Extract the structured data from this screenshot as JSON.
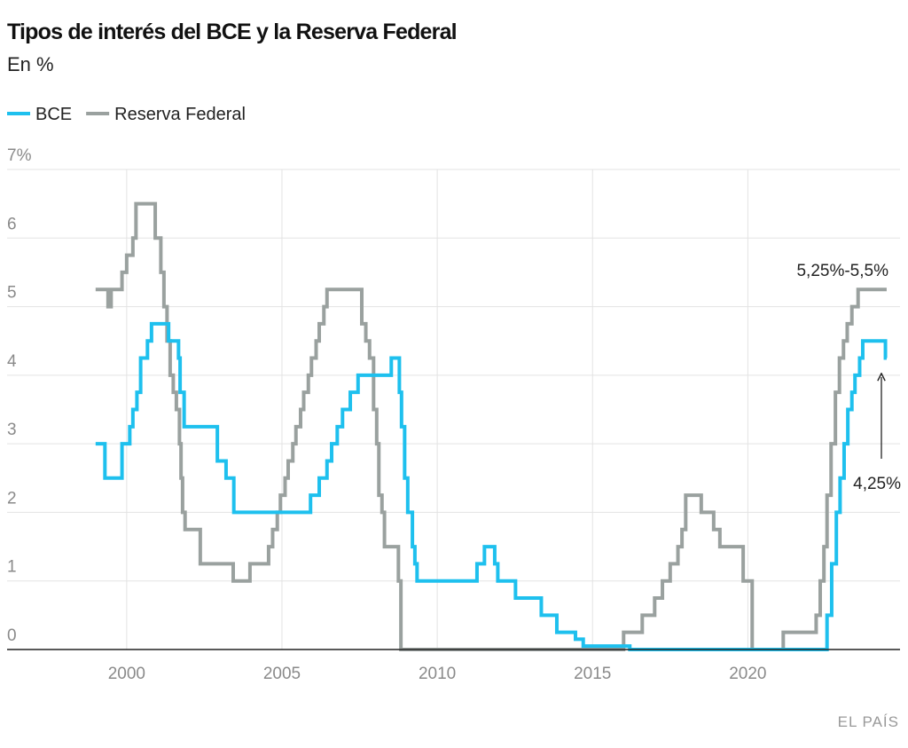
{
  "chart_data": {
    "type": "line",
    "line_shape": "step-after",
    "title": "Tipos de interés del BCE y la Reserva Federal",
    "subtitle": "En %",
    "source": "EL PAÍS",
    "annotations": [
      "5,25%-5,5%",
      "4,25%"
    ],
    "xlim": [
      1996.15,
      2024.9
    ],
    "xticks": [
      2000,
      2005,
      2010,
      2015,
      2020
    ],
    "ylim": [
      0,
      7
    ],
    "yticks": [
      0,
      1,
      2,
      3,
      4,
      5,
      6,
      {
        "value": 7,
        "label": "7%"
      }
    ],
    "grid": true,
    "legend": "top-left",
    "series": [
      {
        "name": "BCE",
        "color": "#1ec0ee",
        "x": [
          1999.0,
          1999.3,
          1999.85,
          2000.1,
          2000.2,
          2000.33,
          2000.45,
          2000.67,
          2000.8,
          2001.35,
          2001.67,
          2001.72,
          2001.85,
          2002.92,
          2003.2,
          2003.45,
          2005.92,
          2006.2,
          2006.45,
          2006.6,
          2006.78,
          2006.95,
          2007.2,
          2007.45,
          2008.52,
          2008.78,
          2008.85,
          2008.95,
          2009.05,
          2009.2,
          2009.28,
          2009.35,
          2011.28,
          2011.52,
          2011.85,
          2011.95,
          2012.52,
          2013.35,
          2013.85,
          2014.45,
          2014.7,
          2016.2,
          2022.55,
          2022.7,
          2022.85,
          2022.97,
          2023.1,
          2023.22,
          2023.35,
          2023.45,
          2023.6,
          2023.7,
          2024.43,
          2024.47
        ],
        "values": [
          3.0,
          2.5,
          3.0,
          3.25,
          3.5,
          3.75,
          4.25,
          4.5,
          4.75,
          4.5,
          4.25,
          3.75,
          3.25,
          2.75,
          2.5,
          2.0,
          2.25,
          2.5,
          2.75,
          3.0,
          3.25,
          3.5,
          3.75,
          4.0,
          4.25,
          3.75,
          3.25,
          2.5,
          2.0,
          1.5,
          1.25,
          1.0,
          1.25,
          1.5,
          1.25,
          1.0,
          0.75,
          0.5,
          0.25,
          0.15,
          0.05,
          0.0,
          0.5,
          1.25,
          2.0,
          2.5,
          3.0,
          3.5,
          3.75,
          4.0,
          4.25,
          4.5,
          4.25,
          4.25
        ]
      },
      {
        "name": "Reserva Federal",
        "color": "#9aa19f",
        "x": [
          1999.0,
          1999.4,
          1999.5,
          1999.85,
          2000.0,
          2000.2,
          2000.3,
          2000.92,
          2001.1,
          2001.2,
          2001.3,
          2001.4,
          2001.5,
          2001.6,
          2001.7,
          2001.75,
          2001.8,
          2001.88,
          2002.37,
          2003.43,
          2003.97,
          2004.57,
          2004.7,
          2004.85,
          2004.95,
          2005.1,
          2005.2,
          2005.35,
          2005.45,
          2005.6,
          2005.7,
          2005.85,
          2005.95,
          2006.1,
          2006.2,
          2006.35,
          2006.45,
          2007.57,
          2007.7,
          2007.82,
          2007.95,
          2008.05,
          2008.12,
          2008.22,
          2008.3,
          2008.75,
          2008.83,
          2008.94,
          2016.0,
          2016.6,
          2017.0,
          2017.25,
          2017.5,
          2017.75,
          2017.88,
          2018.0,
          2018.5,
          2018.9,
          2019.1,
          2019.85,
          2020.14,
          2021.14,
          2022.2,
          2022.33,
          2022.45,
          2022.55,
          2022.68,
          2022.82,
          2022.95,
          2023.08,
          2023.2,
          2023.35,
          2023.55,
          2024.47
        ],
        "values": [
          5.25,
          5.0,
          5.25,
          5.5,
          5.75,
          6.0,
          6.5,
          6.0,
          5.5,
          5.0,
          4.5,
          4.0,
          3.75,
          3.5,
          3.0,
          2.5,
          2.0,
          1.75,
          1.25,
          1.0,
          1.25,
          1.5,
          1.75,
          2.0,
          2.25,
          2.5,
          2.75,
          3.0,
          3.25,
          3.5,
          3.75,
          4.0,
          4.25,
          4.5,
          4.75,
          5.0,
          5.25,
          4.75,
          4.5,
          4.25,
          3.5,
          3.0,
          2.25,
          2.0,
          1.5,
          1.0,
          0.0,
          0.0,
          0.25,
          0.5,
          0.75,
          1.0,
          1.25,
          1.5,
          1.75,
          2.25,
          2.0,
          1.75,
          1.5,
          1.0,
          0.0,
          0.25,
          0.5,
          1.0,
          1.5,
          2.25,
          3.0,
          3.75,
          4.25,
          4.5,
          4.75,
          5.0,
          5.25,
          5.25
        ]
      }
    ]
  }
}
